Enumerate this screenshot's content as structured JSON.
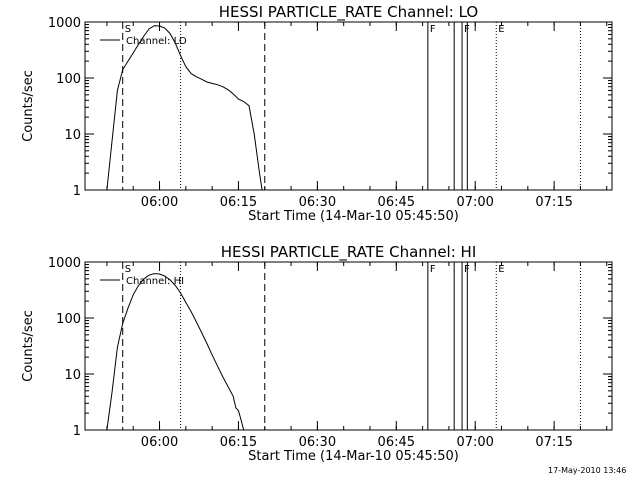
{
  "footer": {
    "timestamp": "17-May-2010 13:46"
  },
  "chart_data": [
    {
      "type": "line",
      "title": "HESSI PARTICLE_RATE Channel: LO",
      "xlabel": "Start Time (14-Mar-10 05:45:50)",
      "ylabel": "Counts/sec",
      "yscale": "log",
      "xlim": [
        "05:45:50",
        "07:26:00"
      ],
      "ylim": [
        1,
        1000
      ],
      "xticks": [
        "06:00",
        "06:15",
        "06:30",
        "06:45",
        "07:00",
        "07:15"
      ],
      "yticks": [
        "1",
        "10",
        "100",
        "1000"
      ],
      "legend": {
        "label": "Channel: LO",
        "position": "top-left"
      },
      "series": [
        {
          "name": "Channel: LO",
          "points": [
            [
              "05:50:00",
              1
            ],
            [
              "05:51:00",
              8
            ],
            [
              "05:52:00",
              60
            ],
            [
              "05:53:00",
              140
            ],
            [
              "05:54:00",
              200
            ],
            [
              "05:55:00",
              280
            ],
            [
              "05:56:00",
              400
            ],
            [
              "05:57:00",
              560
            ],
            [
              "05:58:00",
              750
            ],
            [
              "05:59:00",
              860
            ],
            [
              "06:00:00",
              850
            ],
            [
              "06:01:00",
              780
            ],
            [
              "06:02:00",
              620
            ],
            [
              "06:03:00",
              420
            ],
            [
              "06:04:00",
              250
            ],
            [
              "06:05:00",
              160
            ],
            [
              "06:06:00",
              120
            ],
            [
              "06:07:00",
              105
            ],
            [
              "06:08:00",
              95
            ],
            [
              "06:09:00",
              85
            ],
            [
              "06:10:00",
              80
            ],
            [
              "06:11:00",
              76
            ],
            [
              "06:12:00",
              70
            ],
            [
              "06:13:00",
              62
            ],
            [
              "06:14:00",
              52
            ],
            [
              "06:15:00",
              42
            ],
            [
              "06:16:00",
              38
            ],
            [
              "06:17:00",
              32
            ],
            [
              "06:18:00",
              10
            ],
            [
              "06:19:00",
              2
            ],
            [
              "06:19:30",
              1
            ]
          ]
        }
      ],
      "annotations": [
        {
          "time": "05:53:00",
          "label": "S",
          "style": "dashed"
        },
        {
          "time": "06:04:00",
          "label": "",
          "style": "dotted"
        },
        {
          "time": "06:20:00",
          "label": "",
          "style": "dashed"
        },
        {
          "time": "06:51:00",
          "label": "F",
          "style": "solid"
        },
        {
          "time": "06:56:00",
          "label": "",
          "style": "solid"
        },
        {
          "time": "06:57:30",
          "label": "F",
          "style": "solid"
        },
        {
          "time": "06:58:30",
          "label": "",
          "style": "solid"
        },
        {
          "time": "07:04:00",
          "label": "E",
          "style": "dotted"
        },
        {
          "time": "07:20:00",
          "label": "",
          "style": "dotted"
        }
      ]
    },
    {
      "type": "line",
      "title": "HESSI PARTICLE_RATE Channel: HI",
      "xlabel": "Start Time (14-Mar-10 05:45:50)",
      "ylabel": "Counts/sec",
      "yscale": "log",
      "xlim": [
        "05:45:50",
        "07:26:00"
      ],
      "ylim": [
        1,
        1000
      ],
      "xticks": [
        "06:00",
        "06:15",
        "06:30",
        "06:45",
        "07:00",
        "07:15"
      ],
      "yticks": [
        "1",
        "10",
        "100",
        "1000"
      ],
      "legend": {
        "label": "Channel: HI",
        "position": "top-left"
      },
      "series": [
        {
          "name": "Channel: HI",
          "points": [
            [
              "05:50:00",
              1
            ],
            [
              "05:51:00",
              5
            ],
            [
              "05:52:00",
              30
            ],
            [
              "05:53:00",
              80
            ],
            [
              "05:54:00",
              150
            ],
            [
              "05:55:00",
              260
            ],
            [
              "05:56:00",
              380
            ],
            [
              "05:57:00",
              500
            ],
            [
              "05:58:00",
              580
            ],
            [
              "05:59:00",
              620
            ],
            [
              "06:00:00",
              610
            ],
            [
              "06:01:00",
              560
            ],
            [
              "06:02:00",
              480
            ],
            [
              "06:03:00",
              380
            ],
            [
              "06:04:00",
              280
            ],
            [
              "06:05:00",
              190
            ],
            [
              "06:06:00",
              130
            ],
            [
              "06:07:00",
              85
            ],
            [
              "06:08:00",
              55
            ],
            [
              "06:09:00",
              35
            ],
            [
              "06:10:00",
              22
            ],
            [
              "06:11:00",
              14
            ],
            [
              "06:12:00",
              9
            ],
            [
              "06:13:00",
              6
            ],
            [
              "06:14:00",
              4
            ],
            [
              "06:14:30",
              2.5
            ],
            [
              "06:15:00",
              2.2
            ],
            [
              "06:15:30",
              1.5
            ],
            [
              "06:16:00",
              1
            ]
          ]
        }
      ],
      "annotations": [
        {
          "time": "05:53:00",
          "label": "S",
          "style": "dashed"
        },
        {
          "time": "06:04:00",
          "label": "",
          "style": "dotted"
        },
        {
          "time": "06:20:00",
          "label": "",
          "style": "dashed"
        },
        {
          "time": "06:51:00",
          "label": "F",
          "style": "solid"
        },
        {
          "time": "06:56:00",
          "label": "",
          "style": "solid"
        },
        {
          "time": "06:57:30",
          "label": "F",
          "style": "solid"
        },
        {
          "time": "06:58:30",
          "label": "",
          "style": "solid"
        },
        {
          "time": "07:04:00",
          "label": "E",
          "style": "dotted"
        },
        {
          "time": "07:20:00",
          "label": "",
          "style": "dotted"
        }
      ]
    }
  ]
}
